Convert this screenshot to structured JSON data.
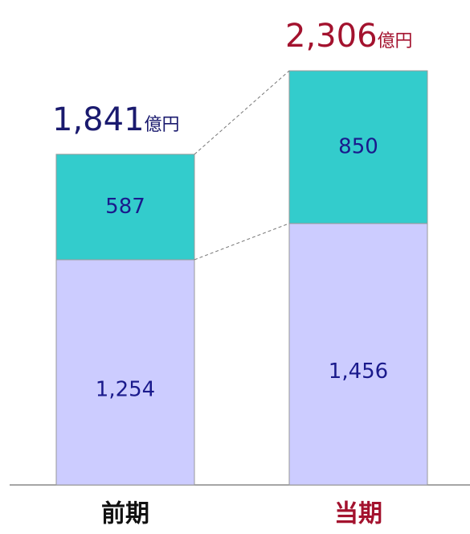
{
  "chart_data": {
    "type": "stacked-bar",
    "categories": [
      "前期",
      "当期"
    ],
    "category_colors": [
      "#111111",
      "#a3122e"
    ],
    "series": [
      {
        "color": "#ccccff",
        "values": [
          1254,
          1456
        ],
        "value_labels": [
          "1,254",
          "1,456"
        ]
      },
      {
        "color": "#33cccc",
        "values": [
          587,
          850
        ],
        "value_labels": [
          "587",
          "850"
        ]
      }
    ],
    "totals": [
      1841,
      2306
    ],
    "total_labels": [
      "1,841",
      "2,306"
    ],
    "total_unit": "億円",
    "total_colors": [
      "#1a1a6e",
      "#a3122e"
    ]
  }
}
